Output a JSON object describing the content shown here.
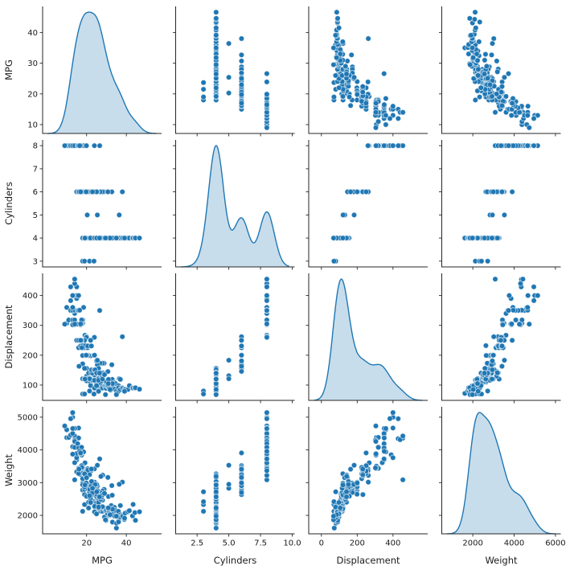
{
  "figure": {
    "kind": "seaborn-pairplot",
    "background": "#ffffff"
  },
  "chart_data": {
    "type": "scatter",
    "subtype": "pairplot-matrix",
    "variables": [
      "MPG",
      "Cylinders",
      "Displacement",
      "Weight"
    ],
    "diagonal": "kde",
    "layout": {
      "grid": false,
      "legend": false,
      "despine": true,
      "rows": 4,
      "cols": 4
    },
    "style": {
      "marker_color": "#1f77b4",
      "marker_edge": "#ffffff",
      "kde_line_color": "#1f77b4",
      "kde_fill_color": "rgba(31,119,180,0.25)",
      "axis_color": "#262626",
      "marker_radius": 3.3
    },
    "ticks": {
      "MPG": {
        "x": [
          "20",
          "40"
        ],
        "y": [
          "10",
          "20",
          "30",
          "40"
        ]
      },
      "Cylinders": {
        "x": [
          "2.5",
          "5.0",
          "7.5",
          "10.0"
        ],
        "y": [
          "3",
          "4",
          "5",
          "6",
          "7",
          "8"
        ]
      },
      "Displacement": {
        "x": [
          "0",
          "200",
          "400"
        ],
        "y": [
          "100",
          "200",
          "300",
          "400"
        ]
      },
      "Weight": {
        "x": [
          "2000",
          "4000",
          "6000"
        ],
        "y": [
          "2000",
          "3000",
          "4000",
          "5000"
        ]
      }
    },
    "records_columns": [
      "MPG",
      "Cylinders",
      "Displacement",
      "Weight"
    ],
    "records": [
      [
        18,
        8,
        307,
        3504
      ],
      [
        15,
        8,
        350,
        3693
      ],
      [
        18,
        8,
        318,
        3436
      ],
      [
        16,
        8,
        304,
        3433
      ],
      [
        17,
        8,
        302,
        3449
      ],
      [
        15,
        8,
        429,
        4341
      ],
      [
        14,
        8,
        454,
        4354
      ],
      [
        14,
        8,
        440,
        4312
      ],
      [
        14,
        8,
        455,
        4425
      ],
      [
        15,
        8,
        390,
        3850
      ],
      [
        14,
        8,
        340,
        3609
      ],
      [
        15,
        8,
        400,
        3761
      ],
      [
        14,
        8,
        455,
        3086
      ],
      [
        10,
        8,
        307,
        4376
      ],
      [
        10,
        8,
        360,
        4615
      ],
      [
        11,
        8,
        318,
        4382
      ],
      [
        9,
        8,
        304,
        4732
      ],
      [
        13,
        8,
        350,
        4100
      ],
      [
        12,
        8,
        350,
        4456
      ],
      [
        13,
        8,
        400,
        4997
      ],
      [
        13,
        8,
        400,
        5140
      ],
      [
        12,
        8,
        383,
        4955
      ],
      [
        16,
        8,
        400,
        4668
      ],
      [
        13,
        8,
        350,
        4502
      ],
      [
        13,
        8,
        318,
        4096
      ],
      [
        14,
        8,
        351,
        4657
      ],
      [
        16,
        8,
        351,
        4363
      ],
      [
        14,
        8,
        318,
        4077
      ],
      [
        14,
        8,
        302,
        4295
      ],
      [
        15,
        8,
        304,
        3892
      ],
      [
        12,
        8,
        429,
        4952
      ],
      [
        13,
        8,
        360,
        4654
      ],
      [
        13,
        8,
        302,
        3870
      ],
      [
        14,
        8,
        304,
        4257
      ],
      [
        17.5,
        8,
        305,
        3840
      ],
      [
        15.5,
        8,
        350,
        4190
      ],
      [
        16,
        8,
        350,
        4055
      ],
      [
        17.5,
        8,
        318,
        4080
      ],
      [
        19.2,
        8,
        267,
        3605
      ],
      [
        18.5,
        8,
        360,
        3940
      ],
      [
        17,
        8,
        305,
        3880
      ],
      [
        16.5,
        8,
        351,
        3955
      ],
      [
        23.9,
        8,
        260,
        3420
      ],
      [
        26.6,
        8,
        350,
        3725
      ],
      [
        20,
        8,
        262,
        3221
      ],
      [
        19.9,
        8,
        260,
        3365
      ],
      [
        18,
        6,
        199,
        2774
      ],
      [
        22,
        6,
        198,
        2833
      ],
      [
        21,
        6,
        200,
        2875
      ],
      [
        21,
        6,
        199,
        2648
      ],
      [
        19,
        6,
        232,
        2634
      ],
      [
        16,
        6,
        225,
        3439
      ],
      [
        17,
        6,
        231,
        3245
      ],
      [
        19,
        6,
        250,
        3302
      ],
      [
        18,
        6,
        232,
        3288
      ],
      [
        15,
        6,
        250,
        3329
      ],
      [
        16,
        6,
        250,
        3278
      ],
      [
        17.5,
        6,
        250,
        3520
      ],
      [
        18,
        6,
        171,
        2984
      ],
      [
        18,
        6,
        225,
        3121
      ],
      [
        20,
        6,
        156,
        2930
      ],
      [
        19,
        6,
        156,
        2795
      ],
      [
        24,
        6,
        200,
        3012
      ],
      [
        19,
        6,
        225,
        3264
      ],
      [
        20.5,
        6,
        225,
        3425
      ],
      [
        20.2,
        6,
        232,
        3265
      ],
      [
        19.4,
        6,
        232,
        3210
      ],
      [
        20.2,
        6,
        200,
        2965
      ],
      [
        17.6,
        6,
        225,
        3465
      ],
      [
        22,
        6,
        250,
        3353
      ],
      [
        21.5,
        6,
        231,
        3245
      ],
      [
        20.6,
        6,
        231,
        3380
      ],
      [
        28.8,
        6,
        173,
        2795
      ],
      [
        28,
        6,
        173,
        2745
      ],
      [
        26.8,
        6,
        173,
        2700
      ],
      [
        25.4,
        6,
        168,
        2900
      ],
      [
        24.2,
        6,
        146,
        2930
      ],
      [
        22.4,
        6,
        231,
        3415
      ],
      [
        38,
        6,
        262,
        3015
      ],
      [
        32.7,
        6,
        168,
        2910
      ],
      [
        30.7,
        6,
        145,
        3160
      ],
      [
        25,
        6,
        181,
        2945
      ],
      [
        23,
        6,
        146,
        2905
      ],
      [
        16.2,
        6,
        163,
        3410
      ],
      [
        17,
        6,
        250,
        3907
      ],
      [
        19.8,
        6,
        200,
        2990
      ],
      [
        18,
        3,
        70,
        2124
      ],
      [
        19,
        3,
        70,
        2330
      ],
      [
        21.5,
        3,
        80,
        2720
      ],
      [
        23.7,
        3,
        70,
        2420
      ],
      [
        20.3,
        5,
        131,
        2830
      ],
      [
        25.4,
        5,
        183,
        3530
      ],
      [
        36.4,
        5,
        121,
        2950
      ],
      [
        19,
        4,
        120,
        3270
      ],
      [
        18,
        4,
        121,
        2933
      ],
      [
        20,
        4,
        130,
        3150
      ],
      [
        19,
        4,
        121,
        2868
      ],
      [
        20,
        4,
        114,
        2582
      ],
      [
        21,
        4,
        140,
        2401
      ],
      [
        21.6,
        4,
        121,
        2795
      ],
      [
        22,
        4,
        121,
        2511
      ],
      [
        23,
        4,
        120,
        2979
      ],
      [
        22.3,
        4,
        140,
        2905
      ],
      [
        24,
        4,
        121,
        2667
      ],
      [
        24,
        4,
        134,
        2702
      ],
      [
        23,
        4,
        140,
        2639
      ],
      [
        24.5,
        4,
        151,
        2740
      ],
      [
        22.5,
        4,
        151,
        3035
      ],
      [
        23.8,
        4,
        151,
        2855
      ],
      [
        25,
        4,
        140,
        2572
      ],
      [
        25.5,
        4,
        140,
        2755
      ],
      [
        26,
        4,
        156,
        2585
      ],
      [
        24.3,
        4,
        151,
        2945
      ],
      [
        24,
        4,
        113,
        2372
      ],
      [
        25,
        4,
        113,
        2228
      ],
      [
        27,
        4,
        97,
        2130
      ],
      [
        26,
        4,
        97,
        2254
      ],
      [
        25,
        4,
        110,
        2645
      ],
      [
        25,
        4,
        104,
        2375
      ],
      [
        26,
        4,
        121,
        2234
      ],
      [
        28,
        4,
        116,
        2123
      ],
      [
        27,
        4,
        101,
        2279
      ],
      [
        26,
        4,
        122,
        2451
      ],
      [
        28,
        4,
        107,
        2464
      ],
      [
        26,
        4,
        108,
        2391
      ],
      [
        27,
        4,
        107,
        2210
      ],
      [
        28,
        4,
        97,
        2265
      ],
      [
        29,
        4,
        98,
        2219
      ],
      [
        28,
        4,
        90,
        2264
      ],
      [
        29,
        4,
        97,
        1950
      ],
      [
        29.5,
        4,
        98,
        2135
      ],
      [
        29.8,
        4,
        89,
        1845
      ],
      [
        30,
        4,
        98,
        2155
      ],
      [
        30.5,
        4,
        98,
        2051
      ],
      [
        31,
        4,
        112,
        2575
      ],
      [
        30,
        4,
        111,
        2155
      ],
      [
        31,
        4,
        97,
        2155
      ],
      [
        31.5,
        4,
        89,
        1990
      ],
      [
        32,
        4,
        83,
        2003
      ],
      [
        32.4,
        4,
        107,
        2300
      ],
      [
        32.9,
        4,
        119,
        2615
      ],
      [
        33,
        4,
        91,
        1795
      ],
      [
        33.5,
        4,
        98,
        2075
      ],
      [
        34.1,
        4,
        86,
        1975
      ],
      [
        34,
        4,
        108,
        2245
      ],
      [
        35,
        4,
        72,
        1613
      ],
      [
        35.1,
        4,
        81,
        1760
      ],
      [
        34.5,
        4,
        105,
        2150
      ],
      [
        36,
        4,
        98,
        2125
      ],
      [
        36,
        4,
        79,
        1825
      ],
      [
        36.1,
        4,
        91,
        1800
      ],
      [
        37,
        4,
        119,
        2300
      ],
      [
        37.2,
        4,
        86,
        2019
      ],
      [
        37,
        4,
        85,
        1945
      ],
      [
        38,
        4,
        91,
        1995
      ],
      [
        38.1,
        4,
        89,
        1968
      ],
      [
        39,
        4,
        86,
        1875
      ],
      [
        39.4,
        4,
        85,
        2070
      ],
      [
        40.8,
        4,
        85,
        2110
      ],
      [
        41.5,
        4,
        98,
        2144
      ],
      [
        43.1,
        4,
        90,
        1985
      ],
      [
        43.4,
        4,
        90,
        2335
      ],
      [
        44.3,
        4,
        90,
        2085
      ],
      [
        44.6,
        4,
        91,
        1850
      ],
      [
        46.6,
        4,
        86,
        2110
      ],
      [
        39.1,
        4,
        79,
        1915
      ],
      [
        22,
        4,
        108,
        2379
      ],
      [
        23,
        4,
        115,
        2694
      ],
      [
        23,
        4,
        116,
        2830
      ],
      [
        21,
        4,
        122,
        2226
      ],
      [
        21.5,
        4,
        121,
        2600
      ],
      [
        22,
        4,
        98,
        2395
      ],
      [
        24,
        4,
        116,
        2275
      ],
      [
        24,
        4,
        90,
        2108
      ],
      [
        25,
        4,
        98,
        2045
      ],
      [
        26,
        4,
        116,
        2220
      ],
      [
        26,
        4,
        79,
        2255
      ],
      [
        27,
        4,
        140,
        2565
      ],
      [
        27.2,
        4,
        135,
        2490
      ],
      [
        27.5,
        4,
        134,
        2560
      ],
      [
        28,
        4,
        120,
        2625
      ],
      [
        28.1,
        4,
        141,
        3230
      ],
      [
        27.2,
        4,
        141,
        3190
      ],
      [
        29,
        4,
        135,
        2672
      ],
      [
        31,
        4,
        119,
        2200
      ],
      [
        33,
        4,
        105,
        2190
      ],
      [
        30.9,
        4,
        105,
        2230
      ],
      [
        25.1,
        4,
        140,
        2720
      ],
      [
        26.5,
        4,
        140,
        2565
      ],
      [
        31.8,
        4,
        85,
        2020
      ],
      [
        29.5,
        4,
        68,
        1867
      ],
      [
        35,
        4,
        68,
        1978
      ],
      [
        19.2,
        4,
        120,
        2930
      ]
    ]
  }
}
